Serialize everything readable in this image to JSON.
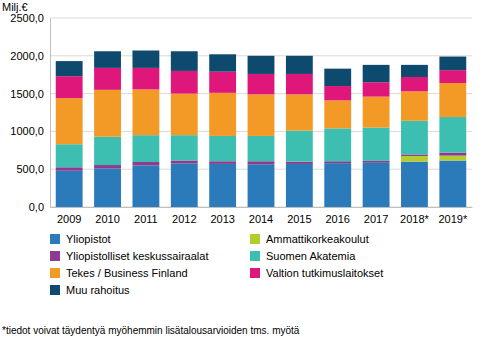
{
  "chart_data": {
    "type": "bar",
    "stacked": true,
    "grid": true,
    "ylabel": "Milj.€",
    "footnote": "*tiedot voivat täydentyä myöhemmin lisätalousarvioiden tms. myötä",
    "categories": [
      "2009",
      "2010",
      "2011",
      "2012",
      "2013",
      "2014",
      "2015",
      "2016",
      "2017",
      "2018*",
      "2019*"
    ],
    "ylim": [
      0,
      2500
    ],
    "yticks": [
      {
        "value": 0,
        "label": "0,0"
      },
      {
        "value": 500,
        "label": "500,0"
      },
      {
        "value": 1000,
        "label": "1000,0"
      },
      {
        "value": 1500,
        "label": "1500,0"
      },
      {
        "value": 2000,
        "label": "2000,0"
      },
      {
        "value": 2500,
        "label": "2500,0"
      }
    ],
    "series": [
      {
        "name": "Yliopistot",
        "color": "#2b7bba",
        "values": [
          480,
          510,
          550,
          575,
          570,
          565,
          570,
          580,
          585,
          600,
          615
        ]
      },
      {
        "name": "Ammattikorkeakoulut",
        "color": "#b5cc2e",
        "values": [
          0,
          0,
          0,
          0,
          0,
          0,
          0,
          0,
          0,
          75,
          65
        ]
      },
      {
        "name": "Yliopistolliset keskussairaalat",
        "color": "#8e3a8e",
        "values": [
          45,
          45,
          45,
          40,
          35,
          40,
          30,
          25,
          25,
          20,
          40
        ]
      },
      {
        "name": "Suomen Akatemia",
        "color": "#3cbfb0",
        "values": [
          305,
          375,
          355,
          335,
          335,
          335,
          410,
          435,
          440,
          445,
          470
        ]
      },
      {
        "name": "Tekes / Business Finland",
        "color": "#f39a26",
        "values": [
          610,
          620,
          605,
          550,
          570,
          550,
          480,
          370,
          410,
          390,
          450
        ]
      },
      {
        "name": "Valtion tutkimuslaitokset",
        "color": "#e0177a",
        "values": [
          290,
          290,
          285,
          300,
          280,
          270,
          270,
          190,
          190,
          190,
          170
        ]
      },
      {
        "name": "Muu rahoitus",
        "color": "#0e4a6e",
        "values": [
          200,
          220,
          230,
          260,
          230,
          240,
          240,
          230,
          230,
          160,
          180
        ]
      }
    ]
  }
}
